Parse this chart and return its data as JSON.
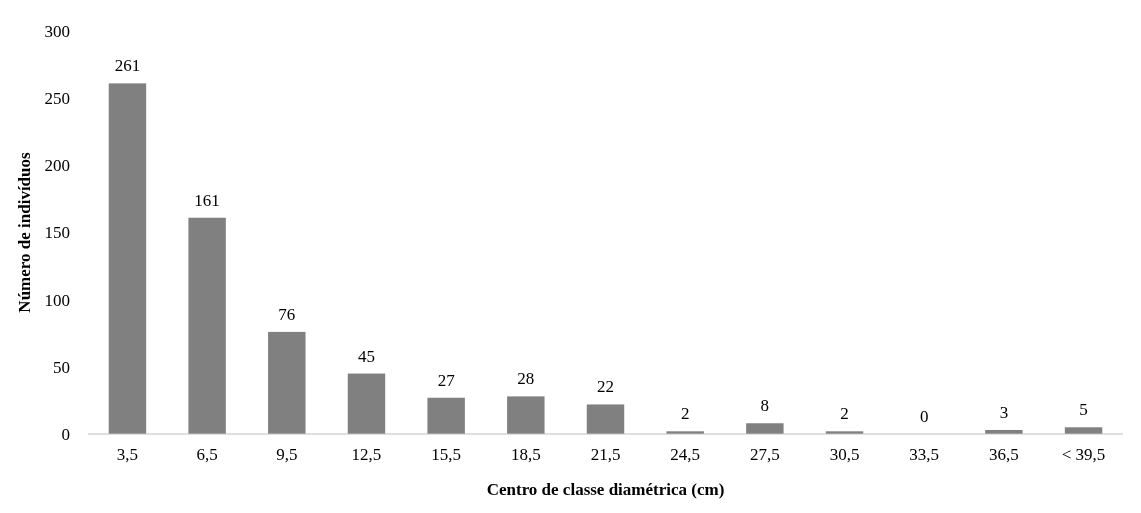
{
  "chart_data": {
    "type": "bar",
    "xlabel": "Centro de classe diamétrica (cm)",
    "ylabel": "Número de indivíduos",
    "categories": [
      "3,5",
      "6,5",
      "9,5",
      "12,5",
      "15,5",
      "18,5",
      "21,5",
      "24,5",
      "27,5",
      "30,5",
      "33,5",
      "36,5",
      "< 39,5"
    ],
    "values": [
      261,
      161,
      76,
      45,
      27,
      28,
      22,
      2,
      8,
      2,
      0,
      3,
      5
    ],
    "color": "#808080",
    "ylim": [
      0,
      300
    ],
    "yticks": [
      0,
      50,
      100,
      150,
      200,
      250,
      300
    ],
    "data_labels": true,
    "grid": false
  }
}
